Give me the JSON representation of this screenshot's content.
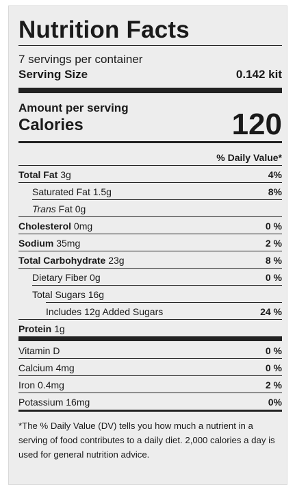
{
  "label": {
    "title": "Nutrition Facts",
    "servings": "7 servings per container",
    "serving_size_label": "Serving Size",
    "serving_size_value": "0.142 kit",
    "amount_per_serving": "Amount per serving",
    "calories_label": "Calories",
    "calories_value": "120",
    "daily_value_header": "% Daily Value*"
  },
  "nutrients": {
    "total_fat": {
      "name": "Total Fat",
      "amount": "3g",
      "dv": "4%"
    },
    "saturated_fat": {
      "name": "Saturated Fat",
      "amount": "1.5g",
      "dv": "8%"
    },
    "trans_fat": {
      "name_italic": "Trans",
      "name_rest": "Fat",
      "amount": "0g"
    },
    "cholesterol": {
      "name": "Cholesterol",
      "amount": "0mg",
      "dv": "0 %"
    },
    "sodium": {
      "name": "Sodium",
      "amount": "35mg",
      "dv": "2 %"
    },
    "total_carbohydrate": {
      "name": "Total Carbohydrate",
      "amount": "23g",
      "dv": "8 %"
    },
    "dietary_fiber": {
      "name": "Dietary Fiber",
      "amount": "0g",
      "dv": "0 %"
    },
    "total_sugars": {
      "name": "Total Sugars",
      "amount": "16g"
    },
    "added_sugars": {
      "text": "Includes 12g Added Sugars",
      "dv": "24 %"
    },
    "protein": {
      "name": "Protein",
      "amount": "1g"
    }
  },
  "vitamins": {
    "vitamin_d": {
      "name": "Vitamin D",
      "dv": "0 %"
    },
    "calcium": {
      "name": "Calcium",
      "amount": "4mg",
      "dv": "0 %"
    },
    "iron": {
      "name": "Iron",
      "amount": "0.4mg",
      "dv": "2 %"
    },
    "potassium": {
      "name": "Potassium",
      "amount": "16mg",
      "dv": "0%"
    }
  },
  "footnote": "*The % Daily Value (DV) tells you how much a nutrient in a serving of food contributes to a daily diet. 2,000 calories a day is used for general nutrition advice.",
  "colors": {
    "panel_background": "#ededed",
    "text": "#1a1a1a",
    "rule": "#222222"
  }
}
